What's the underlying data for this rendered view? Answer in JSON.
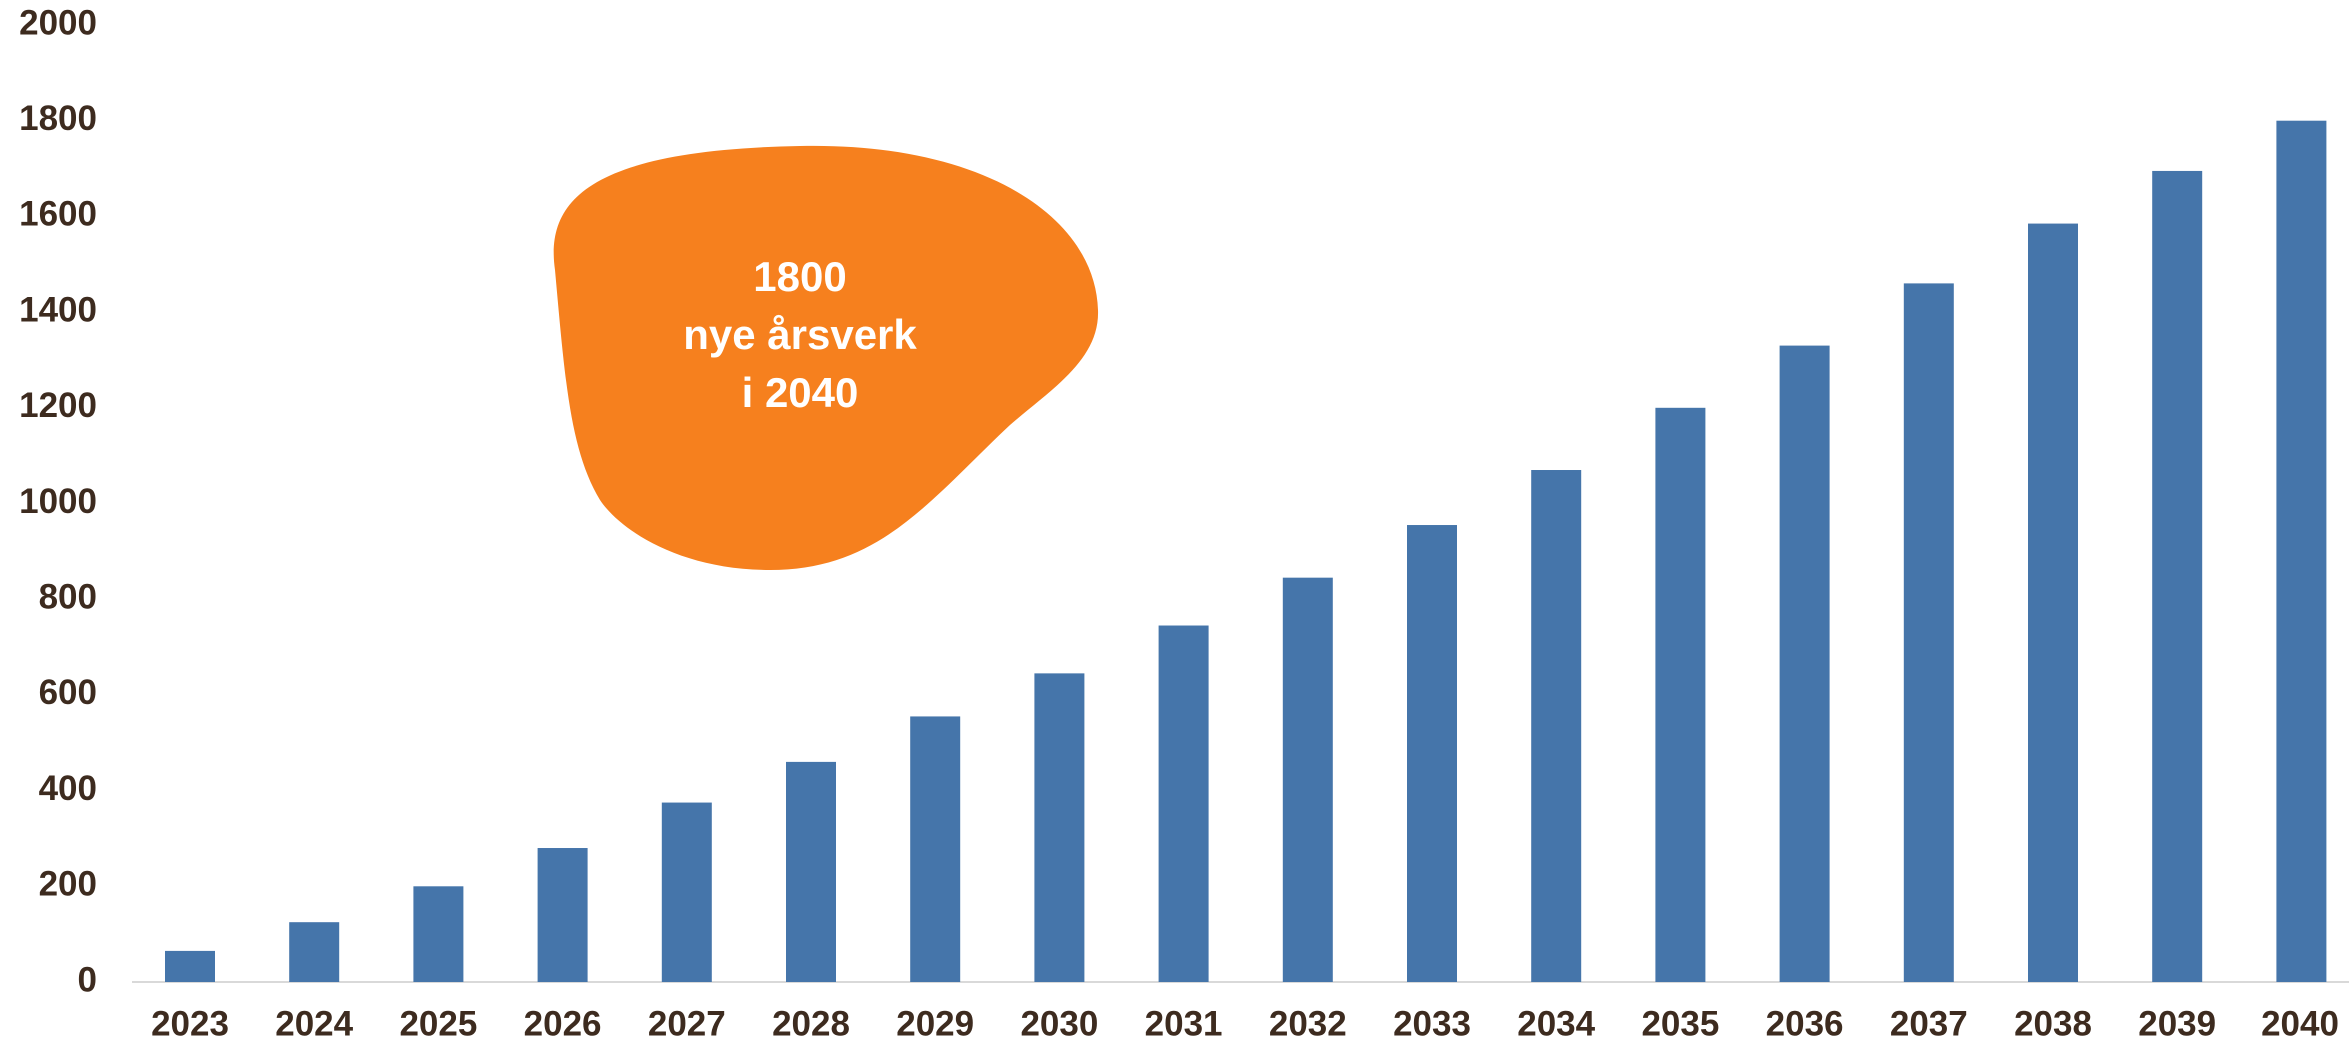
{
  "chart_data": {
    "type": "bar",
    "categories": [
      "2023",
      "2024",
      "2025",
      "2026",
      "2027",
      "2028",
      "2029",
      "2030",
      "2031",
      "2032",
      "2033",
      "2034",
      "2035",
      "2036",
      "2037",
      "2038",
      "2039",
      "2040"
    ],
    "values": [
      65,
      125,
      200,
      280,
      375,
      460,
      555,
      645,
      745,
      845,
      955,
      1070,
      1200,
      1330,
      1460,
      1585,
      1695,
      1800
    ],
    "color": "#4575aa",
    "ylim": [
      0,
      2000
    ],
    "yticks": [
      0,
      200,
      400,
      600,
      800,
      1000,
      1200,
      1400,
      1600,
      1800,
      2000
    ],
    "grid": false,
    "annotation": {
      "lines": [
        "1800",
        "nye årsverk",
        "i 2040"
      ],
      "color": "#f6801e"
    }
  }
}
